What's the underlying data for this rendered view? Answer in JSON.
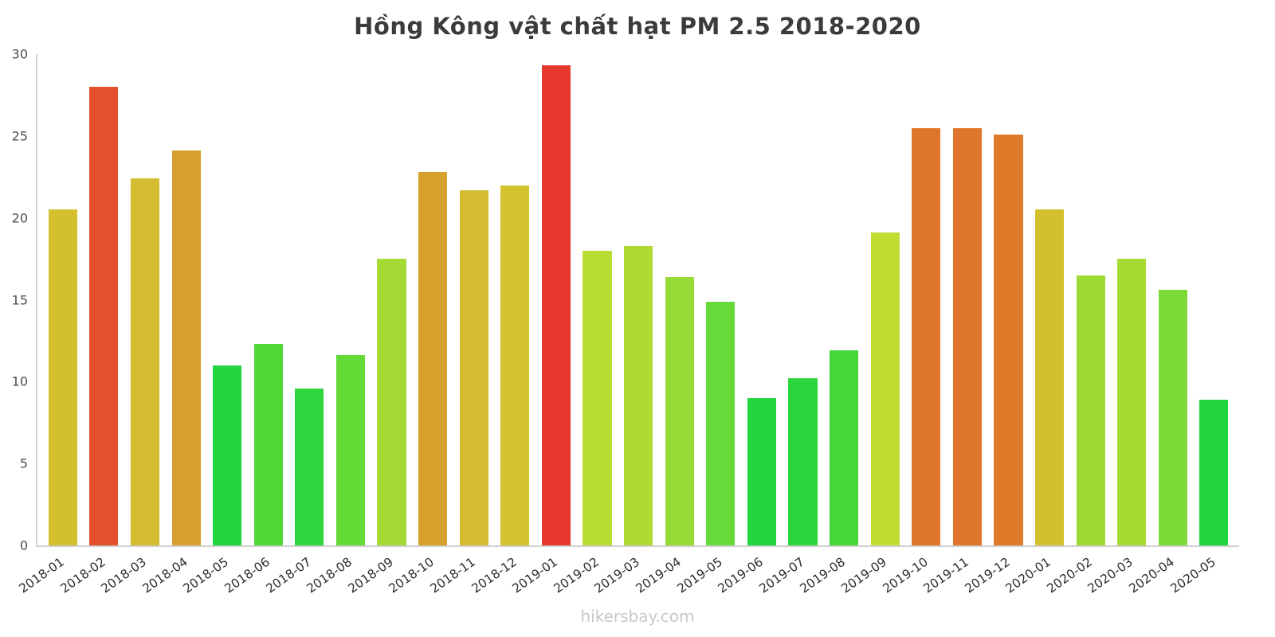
{
  "chart_data": {
    "type": "bar",
    "title": "Hồng Kông vật chất hạt PM 2.5 2018-2020",
    "xlabel": "",
    "ylabel": "",
    "ylim": [
      0,
      30
    ],
    "yticks": [
      0,
      5,
      10,
      15,
      20,
      25,
      30
    ],
    "grid": false,
    "legend": false,
    "categories": [
      "2018-01",
      "2018-02",
      "2018-03",
      "2018-04",
      "2018-05",
      "2018-06",
      "2018-07",
      "2018-08",
      "2018-09",
      "2018-10",
      "2018-11",
      "2018-12",
      "2019-01",
      "2019-02",
      "2019-03",
      "2019-04",
      "2019-05",
      "2019-06",
      "2019-07",
      "2019-08",
      "2019-09",
      "2019-10",
      "2019-11",
      "2019-12",
      "2020-01",
      "2020-02",
      "2020-03",
      "2020-04",
      "2020-05"
    ],
    "values": [
      20.5,
      28.0,
      22.4,
      24.1,
      11.0,
      12.3,
      9.6,
      11.6,
      17.5,
      22.8,
      21.7,
      22.0,
      29.3,
      18.0,
      18.3,
      16.4,
      14.9,
      9.0,
      10.2,
      11.9,
      19.1,
      25.5,
      25.5,
      25.1,
      20.5,
      16.5,
      17.5,
      15.6,
      8.9
    ],
    "colors": [
      "#d4c02e",
      "#e3502d",
      "#d4bc30",
      "#d89f2e",
      "#22d53e",
      "#51d838",
      "#2ed53c",
      "#63da36",
      "#a4da33",
      "#d8a02c",
      "#d4bc30",
      "#d4c22e",
      "#e6382e",
      "#b8dc33",
      "#b0da33",
      "#96da36",
      "#66da38",
      "#22d53e",
      "#2bd53c",
      "#44d73a",
      "#c0dd31",
      "#e0762c",
      "#e0762c",
      "#e07a2b",
      "#d4c02e",
      "#9eda34",
      "#a6da33",
      "#7cda37",
      "#22d53e"
    ]
  },
  "footer": {
    "watermark": "hikersbay.com"
  }
}
